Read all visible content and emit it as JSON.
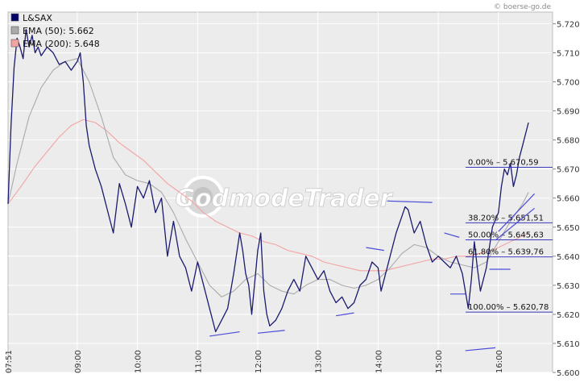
{
  "watermark_source": "© boerse-go.de",
  "watermark_brand": "GodmodeTrader",
  "chart_data": {
    "type": "line",
    "title": "",
    "xlabel": "",
    "ylabel": "",
    "ylim": [
      5.6,
      5.724
    ],
    "y_ticks": [
      "5.720",
      "5.710",
      "5.700",
      "5.690",
      "5.680",
      "5.670",
      "5.660",
      "5.650",
      "5.640",
      "5.630",
      "5.620",
      "5.610",
      "5.600"
    ],
    "x_ticks": [
      {
        "t": 7.85,
        "label": "07:51"
      },
      {
        "t": 9,
        "label": "09:00"
      },
      {
        "t": 10,
        "label": "10:00"
      },
      {
        "t": 11,
        "label": "11:00"
      },
      {
        "t": 12,
        "label": "12:00"
      },
      {
        "t": 13,
        "label": "13:00"
      },
      {
        "t": 14,
        "label": "14:00"
      },
      {
        "t": 15,
        "label": "15:00"
      },
      {
        "t": 16,
        "label": "16:00"
      }
    ],
    "grid": true,
    "legend_position": "top-left",
    "legend": [
      {
        "label": "L&SAX",
        "color": "#000066"
      },
      {
        "label": "EMA (50): 5.662",
        "color": "#aaaaaa"
      },
      {
        "label": "EMA (200): 5.648",
        "color": "#f4a3a3"
      }
    ],
    "series": [
      {
        "name": "L&SAX",
        "color": "#1a1a6e",
        "points": [
          [
            7.85,
            5.658
          ],
          [
            7.9,
            5.685
          ],
          [
            7.95,
            5.705
          ],
          [
            8.0,
            5.715
          ],
          [
            8.05,
            5.712
          ],
          [
            8.1,
            5.708
          ],
          [
            8.15,
            5.718
          ],
          [
            8.2,
            5.712
          ],
          [
            8.25,
            5.716
          ],
          [
            8.3,
            5.71
          ],
          [
            8.35,
            5.712
          ],
          [
            8.4,
            5.709
          ],
          [
            8.5,
            5.712
          ],
          [
            8.6,
            5.71
          ],
          [
            8.7,
            5.706
          ],
          [
            8.8,
            5.707
          ],
          [
            8.9,
            5.704
          ],
          [
            9.0,
            5.707
          ],
          [
            9.05,
            5.71
          ],
          [
            9.1,
            5.7
          ],
          [
            9.15,
            5.685
          ],
          [
            9.2,
            5.678
          ],
          [
            9.3,
            5.67
          ],
          [
            9.4,
            5.664
          ],
          [
            9.5,
            5.656
          ],
          [
            9.6,
            5.648
          ],
          [
            9.7,
            5.665
          ],
          [
            9.8,
            5.658
          ],
          [
            9.9,
            5.65
          ],
          [
            10.0,
            5.664
          ],
          [
            10.1,
            5.66
          ],
          [
            10.2,
            5.666
          ],
          [
            10.3,
            5.655
          ],
          [
            10.4,
            5.66
          ],
          [
            10.5,
            5.64
          ],
          [
            10.6,
            5.652
          ],
          [
            10.7,
            5.64
          ],
          [
            10.8,
            5.636
          ],
          [
            10.9,
            5.628
          ],
          [
            11.0,
            5.638
          ],
          [
            11.1,
            5.63
          ],
          [
            11.2,
            5.622
          ],
          [
            11.3,
            5.614
          ],
          [
            11.4,
            5.618
          ],
          [
            11.5,
            5.622
          ],
          [
            11.6,
            5.634
          ],
          [
            11.7,
            5.648
          ],
          [
            11.75,
            5.642
          ],
          [
            11.8,
            5.634
          ],
          [
            11.85,
            5.63
          ],
          [
            11.9,
            5.62
          ],
          [
            12.0,
            5.642
          ],
          [
            12.05,
            5.648
          ],
          [
            12.1,
            5.628
          ],
          [
            12.15,
            5.62
          ],
          [
            12.2,
            5.616
          ],
          [
            12.3,
            5.618
          ],
          [
            12.4,
            5.622
          ],
          [
            12.5,
            5.628
          ],
          [
            12.6,
            5.632
          ],
          [
            12.7,
            5.628
          ],
          [
            12.8,
            5.64
          ],
          [
            12.9,
            5.636
          ],
          [
            13.0,
            5.632
          ],
          [
            13.1,
            5.635
          ],
          [
            13.2,
            5.628
          ],
          [
            13.3,
            5.624
          ],
          [
            13.4,
            5.626
          ],
          [
            13.5,
            5.622
          ],
          [
            13.6,
            5.624
          ],
          [
            13.7,
            5.63
          ],
          [
            13.8,
            5.632
          ],
          [
            13.9,
            5.638
          ],
          [
            14.0,
            5.636
          ],
          [
            14.05,
            5.628
          ],
          [
            14.1,
            5.632
          ],
          [
            14.2,
            5.64
          ],
          [
            14.3,
            5.648
          ],
          [
            14.4,
            5.654
          ],
          [
            14.45,
            5.657
          ],
          [
            14.5,
            5.656
          ],
          [
            14.6,
            5.648
          ],
          [
            14.7,
            5.652
          ],
          [
            14.8,
            5.644
          ],
          [
            14.9,
            5.638
          ],
          [
            15.0,
            5.64
          ],
          [
            15.1,
            5.638
          ],
          [
            15.2,
            5.636
          ],
          [
            15.3,
            5.64
          ],
          [
            15.4,
            5.634
          ],
          [
            15.5,
            5.622
          ],
          [
            15.55,
            5.632
          ],
          [
            15.6,
            5.645
          ],
          [
            15.65,
            5.636
          ],
          [
            15.7,
            5.628
          ],
          [
            15.8,
            5.636
          ],
          [
            15.9,
            5.65
          ],
          [
            16.0,
            5.655
          ],
          [
            16.05,
            5.664
          ],
          [
            16.1,
            5.67
          ],
          [
            16.15,
            5.668
          ],
          [
            16.2,
            5.672
          ],
          [
            16.25,
            5.664
          ],
          [
            16.3,
            5.668
          ],
          [
            16.35,
            5.674
          ],
          [
            16.4,
            5.678
          ],
          [
            16.45,
            5.682
          ],
          [
            16.5,
            5.686
          ]
        ]
      },
      {
        "name": "EMA (50): 5.662",
        "color": "#aaaaaa",
        "points": [
          [
            7.85,
            5.658
          ],
          [
            8.0,
            5.672
          ],
          [
            8.2,
            5.688
          ],
          [
            8.4,
            5.698
          ],
          [
            8.6,
            5.704
          ],
          [
            8.8,
            5.707
          ],
          [
            9.0,
            5.708
          ],
          [
            9.2,
            5.7
          ],
          [
            9.4,
            5.688
          ],
          [
            9.6,
            5.674
          ],
          [
            9.8,
            5.668
          ],
          [
            10.0,
            5.666
          ],
          [
            10.2,
            5.665
          ],
          [
            10.4,
            5.662
          ],
          [
            10.6,
            5.655
          ],
          [
            10.8,
            5.646
          ],
          [
            11.0,
            5.638
          ],
          [
            11.2,
            5.63
          ],
          [
            11.4,
            5.626
          ],
          [
            11.6,
            5.628
          ],
          [
            11.8,
            5.632
          ],
          [
            12.0,
            5.634
          ],
          [
            12.2,
            5.63
          ],
          [
            12.4,
            5.628
          ],
          [
            12.6,
            5.627
          ],
          [
            12.8,
            5.63
          ],
          [
            13.0,
            5.632
          ],
          [
            13.2,
            5.632
          ],
          [
            13.4,
            5.63
          ],
          [
            13.6,
            5.629
          ],
          [
            13.8,
            5.63
          ],
          [
            14.0,
            5.632
          ],
          [
            14.2,
            5.636
          ],
          [
            14.4,
            5.641
          ],
          [
            14.6,
            5.644
          ],
          [
            14.8,
            5.643
          ],
          [
            15.0,
            5.64
          ],
          [
            15.2,
            5.638
          ],
          [
            15.4,
            5.637
          ],
          [
            15.6,
            5.636
          ],
          [
            15.8,
            5.638
          ],
          [
            16.0,
            5.645
          ],
          [
            16.2,
            5.652
          ],
          [
            16.4,
            5.658
          ],
          [
            16.5,
            5.662
          ]
        ]
      },
      {
        "name": "EMA (200): 5.648",
        "color": "#f4a3a3",
        "points": [
          [
            7.85,
            5.658
          ],
          [
            8.1,
            5.665
          ],
          [
            8.3,
            5.671
          ],
          [
            8.5,
            5.676
          ],
          [
            8.7,
            5.681
          ],
          [
            8.9,
            5.685
          ],
          [
            9.1,
            5.687
          ],
          [
            9.3,
            5.686
          ],
          [
            9.5,
            5.683
          ],
          [
            9.7,
            5.679
          ],
          [
            9.9,
            5.676
          ],
          [
            10.1,
            5.673
          ],
          [
            10.3,
            5.669
          ],
          [
            10.5,
            5.665
          ],
          [
            10.7,
            5.662
          ],
          [
            10.9,
            5.659
          ],
          [
            11.1,
            5.655
          ],
          [
            11.3,
            5.652
          ],
          [
            11.5,
            5.65
          ],
          [
            11.7,
            5.648
          ],
          [
            11.9,
            5.647
          ],
          [
            12.1,
            5.645
          ],
          [
            12.3,
            5.644
          ],
          [
            12.5,
            5.642
          ],
          [
            12.7,
            5.641
          ],
          [
            12.9,
            5.64
          ],
          [
            13.1,
            5.638
          ],
          [
            13.3,
            5.637
          ],
          [
            13.5,
            5.636
          ],
          [
            13.7,
            5.635
          ],
          [
            13.9,
            5.635
          ],
          [
            14.1,
            5.635
          ],
          [
            14.3,
            5.636
          ],
          [
            14.5,
            5.637
          ],
          [
            14.7,
            5.638
          ],
          [
            14.9,
            5.639
          ],
          [
            15.1,
            5.639
          ],
          [
            15.3,
            5.64
          ],
          [
            15.5,
            5.64
          ],
          [
            15.7,
            5.641
          ],
          [
            15.9,
            5.642
          ],
          [
            16.1,
            5.644
          ],
          [
            16.3,
            5.646
          ],
          [
            16.5,
            5.648
          ]
        ]
      }
    ],
    "fib_levels": [
      {
        "label": "0.00% – 5.670,59",
        "value": 5.67059
      },
      {
        "label": "38.20% – 5.651,51",
        "value": 5.65151
      },
      {
        "label": "50.00% – 5.645,63",
        "value": 5.64563
      },
      {
        "label": "61.80% – 5.639,76",
        "value": 5.63976
      },
      {
        "label": "100.00% – 5.620,78",
        "value": 5.62078
      }
    ],
    "trend_lines": [
      [
        [
          11.2,
          5.6125
        ],
        [
          11.7,
          5.614
        ]
      ],
      [
        [
          12.0,
          5.6135
        ],
        [
          12.45,
          5.6145
        ]
      ],
      [
        [
          13.3,
          5.6195
        ],
        [
          13.6,
          5.6205
        ]
      ],
      [
        [
          13.8,
          5.643
        ],
        [
          14.1,
          5.642
        ]
      ],
      [
        [
          14.15,
          5.659
        ],
        [
          14.9,
          5.6585
        ]
      ],
      [
        [
          15.1,
          5.648
        ],
        [
          15.35,
          5.6465
        ]
      ],
      [
        [
          15.2,
          5.627
        ],
        [
          15.45,
          5.627
        ]
      ],
      [
        [
          15.45,
          5.6075
        ],
        [
          15.95,
          5.6085
        ]
      ],
      [
        [
          15.85,
          5.6355
        ],
        [
          16.2,
          5.6355
        ]
      ],
      [
        [
          15.95,
          5.6455
        ],
        [
          16.6,
          5.6565
        ]
      ],
      [
        [
          16.0,
          5.6485
        ],
        [
          16.6,
          5.6615
        ]
      ]
    ]
  }
}
